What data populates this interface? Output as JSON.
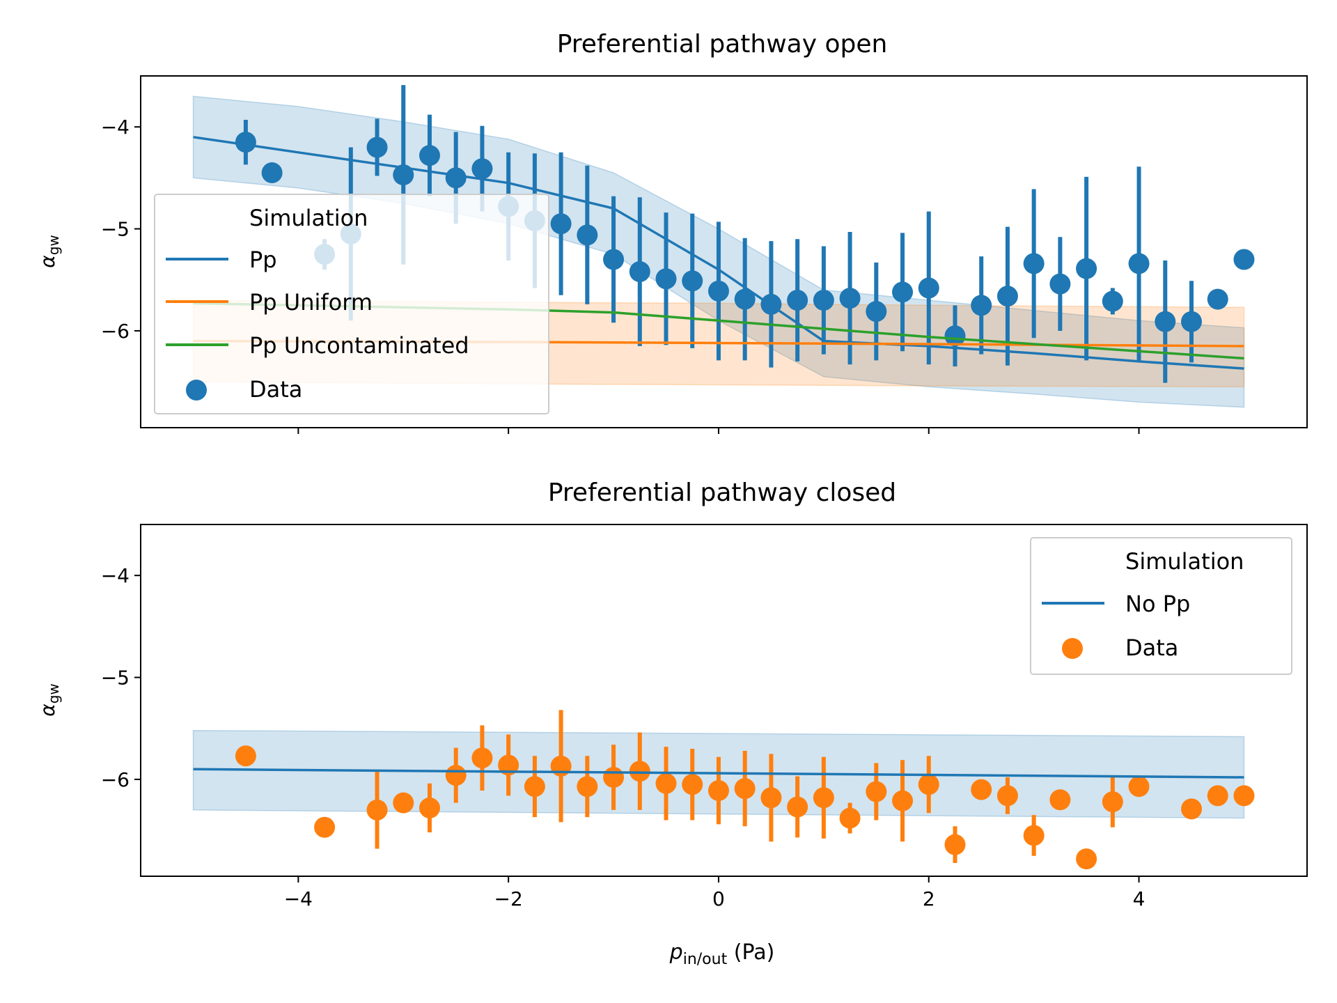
{
  "chart_data": [
    {
      "type": "scatter",
      "title": "Preferential pathway open",
      "ylabel_main": "α",
      "ylabel_sub": "gw",
      "xlim": [
        -5.5,
        5.6
      ],
      "ylim": [
        -6.95,
        -3.5
      ],
      "yticks": [
        -4,
        -5,
        -6
      ],
      "ytick_labels": [
        "−4",
        "−5",
        "−6"
      ],
      "xticks": [
        -4,
        -2,
        0,
        2,
        4
      ],
      "xticklabels_shown": false,
      "legend": {
        "position": "center-left",
        "title": "Simulation",
        "entries": [
          "Pp",
          "Pp Uniform",
          "Pp Uncontaminated",
          "Data"
        ]
      },
      "colors": {
        "blue": "#1f77b4",
        "orange": "#ff7f0e",
        "green": "#2ca02c"
      },
      "series": [
        {
          "name": "Pp",
          "kind": "line",
          "color": "#1f77b4",
          "x": [
            -5,
            -4,
            -3,
            -2,
            -1,
            0,
            1,
            2,
            3,
            4,
            5
          ],
          "y": [
            -4.1,
            -4.25,
            -4.4,
            -4.55,
            -4.8,
            -5.4,
            -6.1,
            -6.15,
            -6.22,
            -6.3,
            -6.37
          ],
          "band_lower": [
            -4.5,
            -4.6,
            -4.75,
            -4.95,
            -5.25,
            -5.9,
            -6.45,
            -6.55,
            -6.62,
            -6.7,
            -6.75
          ],
          "band_upper": [
            -3.7,
            -3.8,
            -3.95,
            -4.12,
            -4.45,
            -5.0,
            -5.6,
            -5.7,
            -5.8,
            -5.9,
            -5.97
          ]
        },
        {
          "name": "Pp Uniform",
          "kind": "line",
          "color": "#ff7f0e",
          "x": [
            -5,
            -2,
            0,
            2,
            5
          ],
          "y": [
            -6.1,
            -6.11,
            -6.12,
            -6.13,
            -6.15
          ],
          "band_lower": [
            -6.5,
            -6.52,
            -6.53,
            -6.54,
            -6.55
          ],
          "band_upper": [
            -5.7,
            -5.72,
            -5.73,
            -5.75,
            -5.77
          ]
        },
        {
          "name": "Pp Uncontaminated",
          "kind": "line",
          "color": "#2ca02c",
          "x": [
            -5,
            -3,
            -2,
            -1,
            0,
            1,
            2,
            3,
            4,
            5
          ],
          "y": [
            -5.73,
            -5.77,
            -5.79,
            -5.82,
            -5.9,
            -5.98,
            -6.06,
            -6.13,
            -6.2,
            -6.27
          ]
        },
        {
          "name": "Data",
          "kind": "errorbar_scatter",
          "color": "#1f77b4",
          "x": [
            -4.5,
            -4.25,
            -3.75,
            -3.5,
            -3.25,
            -3.0,
            -2.75,
            -2.5,
            -2.25,
            -2.0,
            -1.75,
            -1.5,
            -1.25,
            -1.0,
            -0.75,
            -0.5,
            -0.25,
            0.0,
            0.25,
            0.5,
            0.75,
            1.0,
            1.25,
            1.5,
            1.75,
            2.0,
            2.25,
            2.5,
            2.75,
            3.0,
            3.25,
            3.5,
            3.75,
            4.0,
            4.25,
            4.5,
            4.75,
            5.0
          ],
          "y": [
            -4.15,
            -4.45,
            -5.25,
            -5.05,
            -4.2,
            -4.47,
            -4.28,
            -4.5,
            -4.41,
            -4.78,
            -4.92,
            -4.95,
            -5.06,
            -5.3,
            -5.42,
            -5.49,
            -5.51,
            -5.61,
            -5.69,
            -5.74,
            -5.7,
            -5.7,
            -5.68,
            -5.81,
            -5.62,
            -5.58,
            -6.05,
            -5.75,
            -5.66,
            -5.34,
            -5.54,
            -5.39,
            -5.71,
            -5.34,
            -5.91,
            -5.91,
            -5.69,
            -5.3
          ],
          "err": [
            0.22,
            0.0,
            0.15,
            0.85,
            0.28,
            0.88,
            0.4,
            0.45,
            0.42,
            0.53,
            0.66,
            0.7,
            0.68,
            0.62,
            0.73,
            0.65,
            0.66,
            0.68,
            0.6,
            0.62,
            0.6,
            0.53,
            0.65,
            0.48,
            0.58,
            0.75,
            0.3,
            0.48,
            0.68,
            0.73,
            0.46,
            0.9,
            0.13,
            0.95,
            0.6,
            0.4,
            0.0,
            0.0
          ]
        }
      ]
    },
    {
      "type": "scatter",
      "title": "Preferential pathway closed",
      "xlabel_main": "p",
      "xlabel_sub": "in/out",
      "xlabel_unit": "(Pa)",
      "ylabel_main": "α",
      "ylabel_sub": "gw",
      "xlim": [
        -5.5,
        5.6
      ],
      "ylim": [
        -6.95,
        -3.5
      ],
      "yticks": [
        -4,
        -5,
        -6
      ],
      "ytick_labels": [
        "−4",
        "−5",
        "−6"
      ],
      "xticks": [
        -4,
        -2,
        0,
        2,
        4
      ],
      "xtick_labels": [
        "−4",
        "−2",
        "0",
        "2",
        "4"
      ],
      "legend": {
        "position": "upper-right",
        "title": "Simulation",
        "entries": [
          "No Pp",
          "Data"
        ]
      },
      "series": [
        {
          "name": "No Pp",
          "kind": "line",
          "color": "#1f77b4",
          "x": [
            -5,
            5
          ],
          "y": [
            -5.9,
            -5.98
          ],
          "band_lower": [
            -6.3,
            -6.38
          ],
          "band_upper": [
            -5.52,
            -5.58
          ]
        },
        {
          "name": "Data",
          "kind": "errorbar_scatter",
          "color": "#ff7f0e",
          "x": [
            -4.5,
            -3.75,
            -3.25,
            -3.0,
            -2.75,
            -2.5,
            -2.25,
            -2.0,
            -1.75,
            -1.5,
            -1.25,
            -1.0,
            -0.75,
            -0.5,
            -0.25,
            0.0,
            0.25,
            0.5,
            0.75,
            1.0,
            1.25,
            1.5,
            1.75,
            2.0,
            2.25,
            2.5,
            2.75,
            3.0,
            3.25,
            3.5,
            3.75,
            4.0,
            4.5,
            4.75,
            5.0
          ],
          "y": [
            -5.77,
            -6.47,
            -6.3,
            -6.23,
            -6.28,
            -5.96,
            -5.79,
            -5.86,
            -6.07,
            -5.87,
            -6.07,
            -5.98,
            -5.92,
            -6.04,
            -6.05,
            -6.11,
            -6.09,
            -6.18,
            -6.27,
            -6.18,
            -6.38,
            -6.12,
            -6.21,
            -6.05,
            -6.64,
            -6.1,
            -6.16,
            -6.55,
            -6.2,
            -6.78,
            -6.22,
            -6.07,
            -6.29,
            -6.16,
            -6.16
          ],
          "err": [
            0.0,
            0.0,
            0.38,
            0.0,
            0.24,
            0.27,
            0.32,
            0.3,
            0.3,
            0.55,
            0.3,
            0.32,
            0.38,
            0.36,
            0.35,
            0.33,
            0.37,
            0.43,
            0.3,
            0.4,
            0.15,
            0.28,
            0.4,
            0.28,
            0.18,
            0.0,
            0.18,
            0.2,
            0.0,
            0.0,
            0.25,
            0.0,
            0.0,
            0.0,
            0.0
          ]
        }
      ]
    }
  ]
}
